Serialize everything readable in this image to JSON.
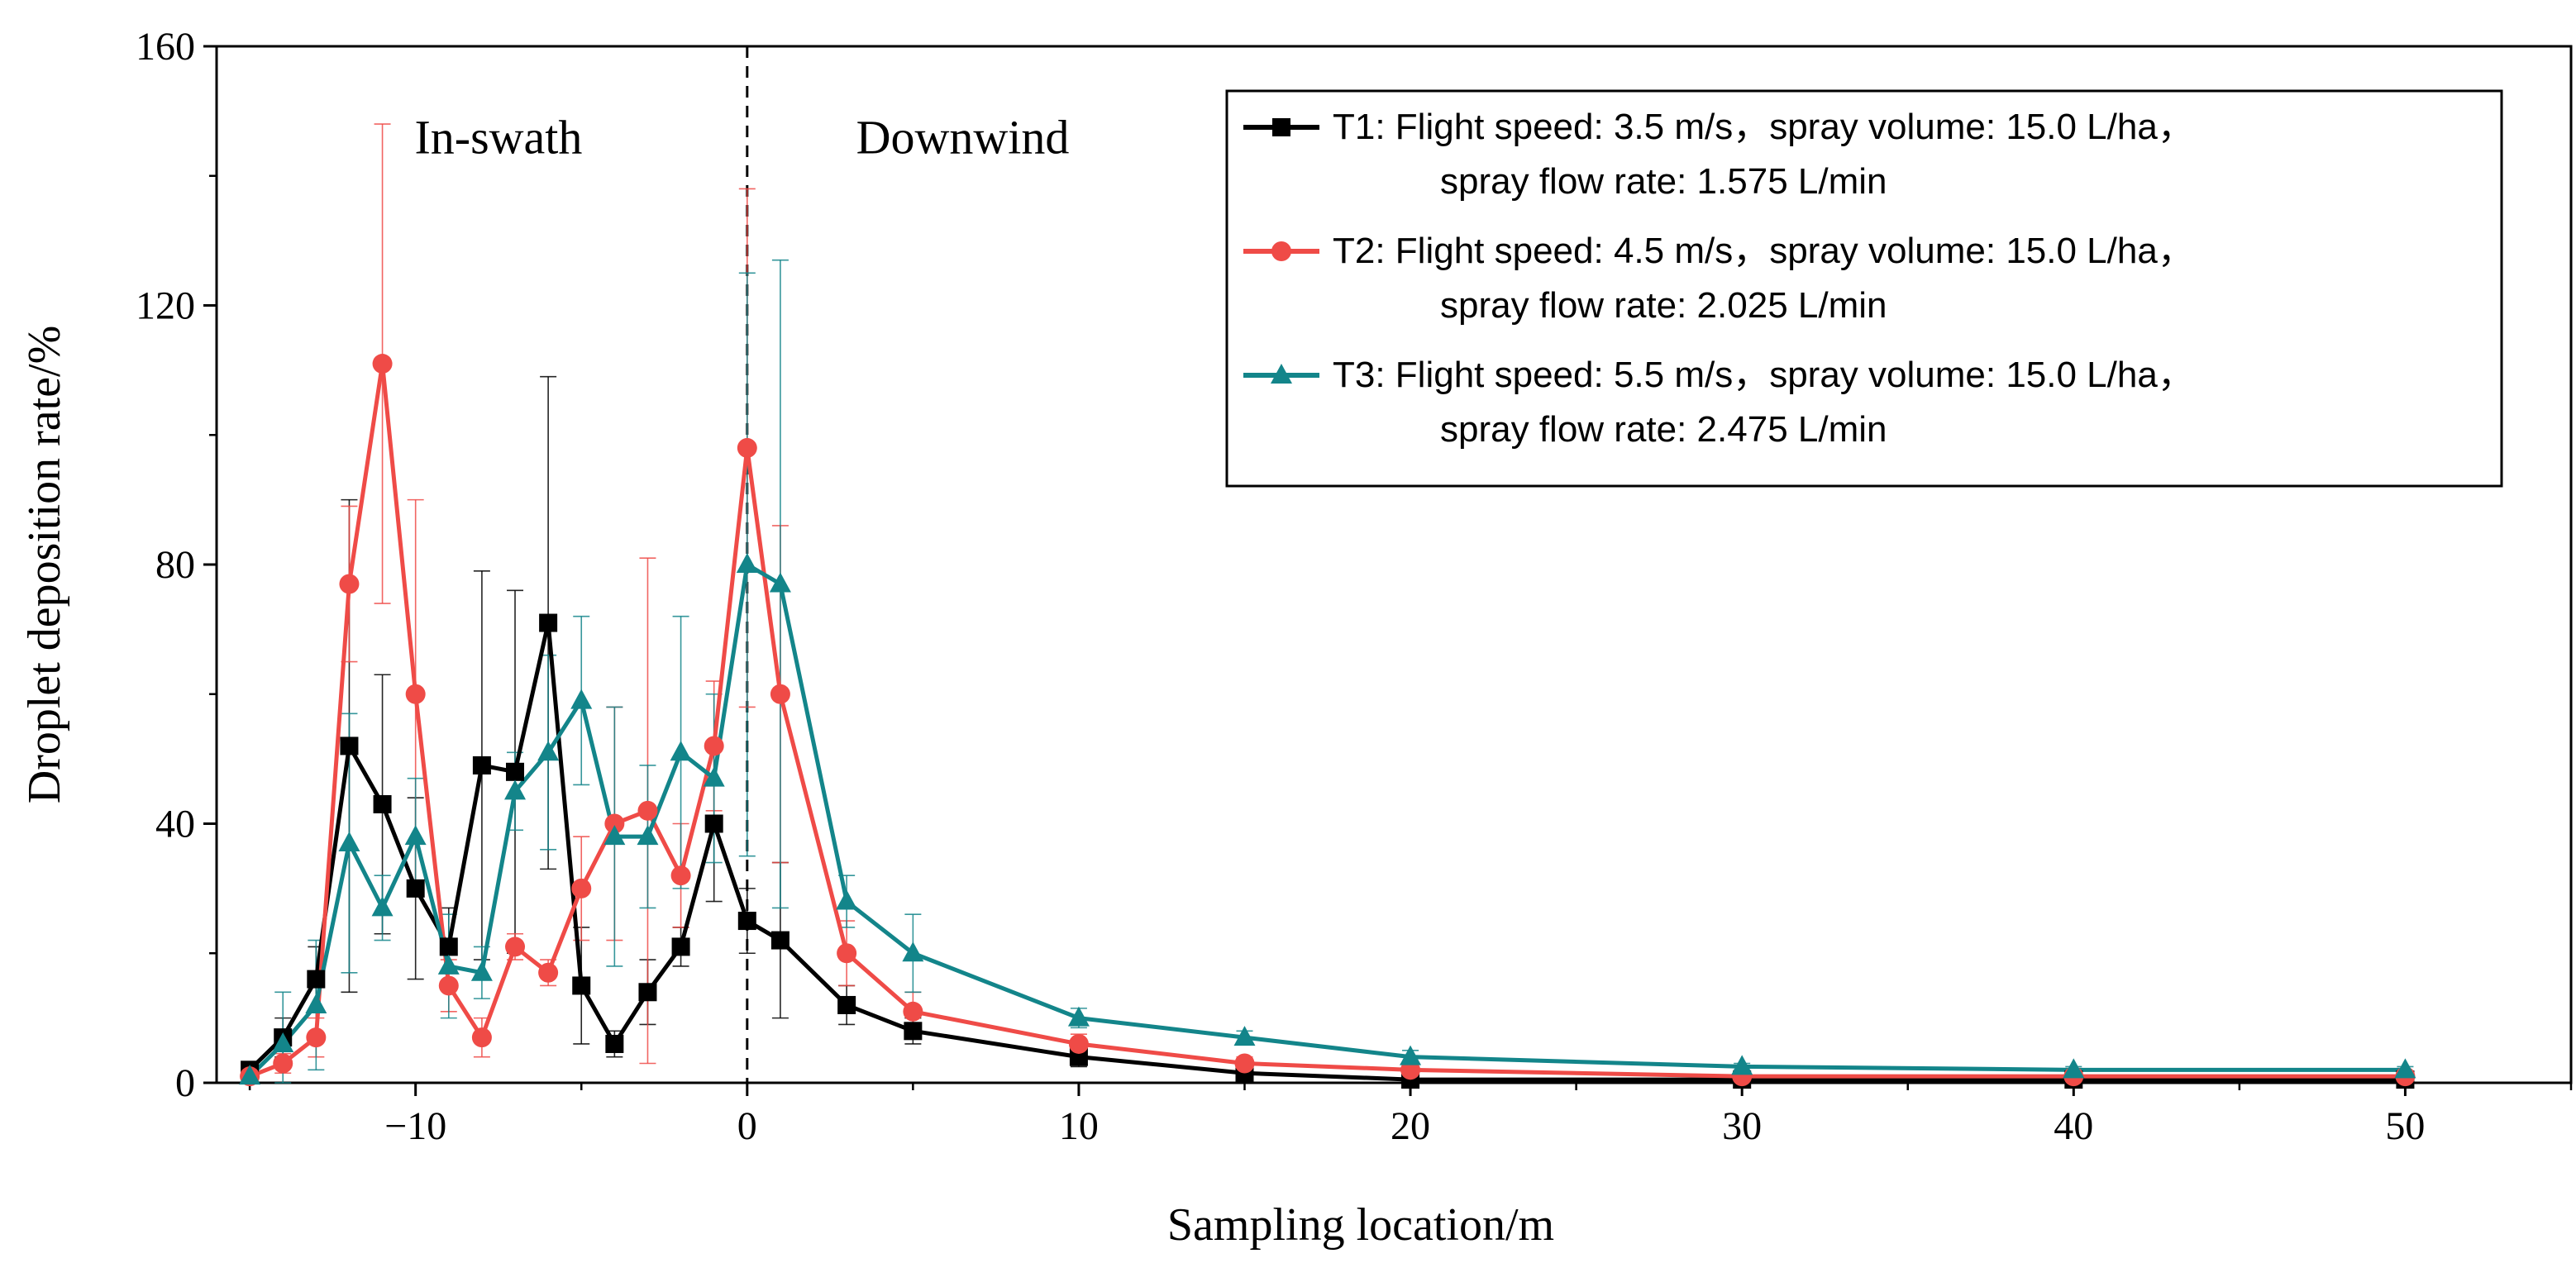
{
  "chart_data": {
    "type": "line",
    "xlabel": "Sampling location/m",
    "ylabel": "Droplet deposition rate/%",
    "xlim": [
      -16,
      55
    ],
    "ylim": [
      0,
      160
    ],
    "x_ticks": [
      -10,
      0,
      10,
      20,
      30,
      40,
      50
    ],
    "x_tick_labels": [
      "−10",
      "0",
      "10",
      "20",
      "30",
      "40",
      "50"
    ],
    "y_ticks": [
      0,
      40,
      80,
      120,
      160
    ],
    "y_tick_labels": [
      "0",
      "40",
      "80",
      "120",
      "160"
    ],
    "vertical_line_x": 0,
    "annotations": [
      {
        "text": "In-swath",
        "x": -7.5,
        "y": 146
      },
      {
        "text": "Downwind",
        "x": 6.5,
        "y": 146
      }
    ],
    "legend_position": "top-right",
    "series": [
      {
        "name": "T1",
        "legend_line1": "T1: Flight speed: 3.5 m/s，spray volume: 15.0 L/ha，",
        "legend_line2": "spray flow rate: 1.575 L/min",
        "color": "#000000",
        "marker": "square",
        "x": [
          -15,
          -14,
          -13,
          -12,
          -11,
          -10,
          -9,
          -8,
          -7,
          -6,
          -5,
          -4,
          -3,
          -2,
          -1,
          0,
          1,
          3,
          5,
          10,
          15,
          20,
          30,
          40,
          50
        ],
        "y": [
          2,
          7,
          16,
          52,
          43,
          30,
          21,
          49,
          48,
          71,
          15,
          6,
          14,
          21,
          40,
          25,
          22,
          12,
          8,
          4,
          1.5,
          0.5,
          0.5,
          0.5,
          0.5
        ],
        "err": [
          0,
          3,
          5,
          38,
          20,
          14,
          6,
          30,
          28,
          38,
          9,
          2,
          5,
          3,
          12,
          5,
          12,
          3,
          2,
          1.5,
          0.5,
          0.3,
          0.3,
          0.3,
          0.3
        ]
      },
      {
        "name": "T2",
        "legend_line1": "T2: Flight speed: 4.5 m/s，spray volume: 15.0 L/ha，",
        "legend_line2": "spray flow rate: 2.025 L/min",
        "color": "#ef4b47",
        "marker": "circle",
        "x": [
          -15,
          -14,
          -13,
          -12,
          -11,
          -10,
          -9,
          -8,
          -7,
          -6,
          -5,
          -4,
          -3,
          -2,
          -1,
          0,
          1,
          3,
          5,
          10,
          15,
          20,
          30,
          40,
          50
        ],
        "y": [
          1,
          3,
          7,
          77,
          111,
          60,
          15,
          7,
          21,
          17,
          30,
          40,
          42,
          32,
          52,
          98,
          60,
          20,
          11,
          6,
          3,
          2,
          1,
          1,
          1
        ],
        "err": [
          0,
          1.5,
          3,
          12,
          37,
          30,
          4,
          3,
          2,
          2,
          8,
          18,
          39,
          8,
          10,
          40,
          26,
          5,
          3,
          1.5,
          1,
          0.8,
          0.5,
          0.5,
          0.5
        ]
      },
      {
        "name": "T3",
        "legend_line1": "T3: Flight speed: 5.5 m/s，spray volume: 15.0 L/ha，",
        "legend_line2": "spray flow rate: 2.475 L/min",
        "color": "#13858a",
        "marker": "triangle",
        "x": [
          -15,
          -14,
          -13,
          -12,
          -11,
          -10,
          -9,
          -8,
          -7,
          -6,
          -5,
          -4,
          -3,
          -2,
          -1,
          0,
          1,
          3,
          5,
          10,
          15,
          20,
          30,
          40,
          50
        ],
        "y": [
          1,
          6,
          12,
          37,
          27,
          38,
          18,
          17,
          45,
          51,
          59,
          38,
          38,
          51,
          47,
          80,
          77,
          28,
          20,
          10,
          7,
          4,
          2.5,
          2,
          2
        ],
        "err": [
          0,
          8,
          10,
          20,
          5,
          9,
          8,
          4,
          6,
          15,
          13,
          20,
          11,
          21,
          13,
          45,
          50,
          4,
          6,
          1.5,
          1,
          1,
          0.5,
          0.5,
          0.5
        ]
      }
    ]
  }
}
